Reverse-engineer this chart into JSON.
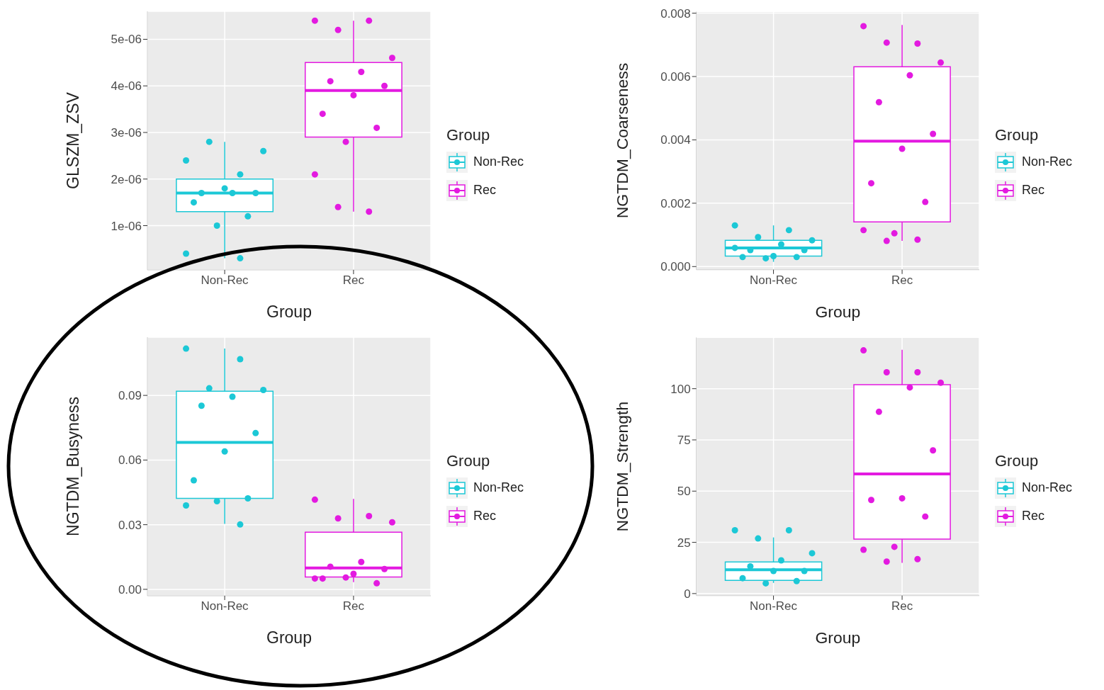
{
  "chart_data": [
    {
      "type": "box",
      "xlabel": "Group",
      "ylabel": "GLSZM_ZSV",
      "legend_title": "Group",
      "legend": "right",
      "grid": true,
      "marker": "circle",
      "categories": [
        "Non-Rec",
        "Rec"
      ],
      "colors": [
        "#1cc8d6",
        "#e31ae0"
      ],
      "ylim": [
        5e-08,
        5.6e-06
      ],
      "yticks": [
        {
          "value": 1e-06,
          "label": "1e-06"
        },
        {
          "value": 2e-06,
          "label": "2e-06"
        },
        {
          "value": 3e-06,
          "label": "3e-06"
        },
        {
          "value": 4e-06,
          "label": "4e-06"
        },
        {
          "value": 5e-06,
          "label": "5e-06"
        }
      ],
      "boxes": [
        {
          "low": 3e-07,
          "q1": 1.3e-06,
          "median": 1.7e-06,
          "q3": 2e-06,
          "high": 2.8e-06
        },
        {
          "low": 1.3e-06,
          "q1": 2.9e-06,
          "median": 3.9e-06,
          "q3": 4.5e-06,
          "high": 5.4e-06
        }
      ],
      "series": [
        {
          "type": "scatter",
          "name": "Non-Rec",
          "color": "#1cc8d6",
          "x": [
            "Non-Rec",
            "Non-Rec",
            "Non-Rec",
            "Non-Rec",
            "Non-Rec",
            "Non-Rec",
            "Non-Rec",
            "Non-Rec",
            "Non-Rec",
            "Non-Rec",
            "Non-Rec",
            "Non-Rec",
            "Non-Rec"
          ],
          "values": [
            2.4e-06,
            2.1e-06,
            2.8e-06,
            2.6e-06,
            1.7e-06,
            1.7e-06,
            1.7e-06,
            1.8e-06,
            1.5e-06,
            1.2e-06,
            1e-06,
            4e-07,
            3e-07
          ]
        },
        {
          "type": "scatter",
          "name": "Rec",
          "color": "#e31ae0",
          "x": [
            "Rec",
            "Rec",
            "Rec",
            "Rec",
            "Rec",
            "Rec",
            "Rec",
            "Rec",
            "Rec",
            "Rec",
            "Rec",
            "Rec",
            "Rec",
            "Rec"
          ],
          "values": [
            5.4e-06,
            5.4e-06,
            5.2e-06,
            4.6e-06,
            4.3e-06,
            4.1e-06,
            4e-06,
            3.8e-06,
            3.4e-06,
            3.1e-06,
            2.8e-06,
            2.1e-06,
            1.3e-06,
            1.4e-06
          ]
        }
      ]
    },
    {
      "type": "box",
      "xlabel": "Group",
      "ylabel": "NGTDM_Coarseness",
      "legend_title": "Group",
      "legend": "right",
      "grid": true,
      "marker": "circle",
      "categories": [
        "Non-Rec",
        "Rec"
      ],
      "colors": [
        "#1cc8d6",
        "#e31ae0"
      ],
      "ylim": [
        -0.0001,
        0.00805
      ],
      "yticks": [
        {
          "value": 0,
          "label": "0.000"
        },
        0.002,
        0.004,
        0.006,
        0.008
      ],
      "boxes": [
        {
          "low": 0.00015,
          "q1": 0.00033,
          "median": 0.00059,
          "q3": 0.00083,
          "high": 0.0013
        },
        {
          "low": 0.00081,
          "q1": 0.00141,
          "median": 0.00396,
          "q3": 0.00631,
          "high": 0.00763
        }
      ],
      "series": [
        {
          "type": "scatter",
          "name": "Non-Rec",
          "color": "#1cc8d6",
          "x": [
            "Non-Rec",
            "Non-Rec",
            "Non-Rec",
            "Non-Rec",
            "Non-Rec",
            "Non-Rec",
            "Non-Rec",
            "Non-Rec",
            "Non-Rec",
            "Non-Rec",
            "Non-Rec",
            "Non-Rec"
          ],
          "values": [
            0.0013,
            0.00115,
            0.00093,
            0.00083,
            0.0007,
            0.00052,
            0.00052,
            0.00033,
            0.0003,
            0.0003,
            0.00026,
            0.00059
          ]
        },
        {
          "type": "scatter",
          "name": "Rec",
          "color": "#e31ae0",
          "x": [
            "Rec",
            "Rec",
            "Rec",
            "Rec",
            "Rec",
            "Rec",
            "Rec",
            "Rec",
            "Rec",
            "Rec",
            "Rec",
            "Rec",
            "Rec",
            "Rec"
          ],
          "values": [
            0.00759,
            0.00704,
            0.00707,
            0.00644,
            0.00604,
            0.00519,
            0.00419,
            0.00372,
            0.00263,
            0.00204,
            0.00105,
            0.00115,
            0.00085,
            0.00081
          ]
        }
      ]
    },
    {
      "type": "box",
      "xlabel": "Group",
      "ylabel": "NGTDM_Busyness",
      "legend_title": "Group",
      "legend": "right",
      "grid": true,
      "marker": "circle",
      "categories": [
        "Non-Rec",
        "Rec"
      ],
      "colors": [
        "#1cc8d6",
        "#e31ae0"
      ],
      "ylim": [
        -0.003,
        0.117
      ],
      "yticks": [
        {
          "value": 0,
          "label": "0.00"
        },
        0.03,
        0.06,
        0.09
      ],
      "boxes": [
        {
          "low": 0.0304,
          "q1": 0.0422,
          "median": 0.0682,
          "q3": 0.0919,
          "high": 0.1117
        },
        {
          "low": 0.0033,
          "q1": 0.0057,
          "median": 0.0099,
          "q3": 0.0265,
          "high": 0.042
        }
      ],
      "series": [
        {
          "type": "scatter",
          "name": "Non-Rec",
          "color": "#1cc8d6",
          "x": [
            "Non-Rec",
            "Non-Rec",
            "Non-Rec",
            "Non-Rec",
            "Non-Rec",
            "Non-Rec",
            "Non-Rec",
            "Non-Rec",
            "Non-Rec",
            "Non-Rec",
            "Non-Rec",
            "Non-Rec",
            "Non-Rec"
          ],
          "values": [
            0.1117,
            0.1068,
            0.0933,
            0.0925,
            0.0894,
            0.0852,
            0.0725,
            0.064,
            0.0506,
            0.0422,
            0.0409,
            0.0389,
            0.0301
          ]
        },
        {
          "type": "scatter",
          "name": "Rec",
          "color": "#e31ae0",
          "x": [
            "Rec",
            "Rec",
            "Rec",
            "Rec",
            "Rec",
            "Rec",
            "Rec",
            "Rec",
            "Rec",
            "Rec",
            "Rec",
            "Rec"
          ],
          "values": [
            0.0416,
            0.034,
            0.0329,
            0.0311,
            0.0127,
            0.0105,
            0.0094,
            0.0072,
            0.005,
            0.0028,
            0.0055,
            0.005
          ]
        }
      ]
    },
    {
      "type": "box",
      "xlabel": "Group",
      "ylabel": "NGTDM_Strength",
      "legend_title": "Group",
      "legend": "right",
      "grid": true,
      "marker": "circle",
      "categories": [
        "Non-Rec",
        "Rec"
      ],
      "colors": [
        "#1cc8d6",
        "#e31ae0"
      ],
      "ylim": [
        -1,
        125
      ],
      "yticks": [
        0,
        25,
        50,
        75,
        100
      ],
      "boxes": [
        {
          "low": 5.2,
          "q1": 6.4,
          "median": 11.6,
          "q3": 15.4,
          "high": 27.4
        },
        {
          "low": 15,
          "q1": 26.6,
          "median": 58.4,
          "q3": 102,
          "high": 119
        }
      ],
      "series": [
        {
          "type": "scatter",
          "name": "Non-Rec",
          "color": "#1cc8d6",
          "x": [
            "Non-Rec",
            "Non-Rec",
            "Non-Rec",
            "Non-Rec",
            "Non-Rec",
            "Non-Rec",
            "Non-Rec",
            "Non-Rec",
            "Non-Rec",
            "Non-Rec",
            "Non-Rec"
          ],
          "values": [
            30.9,
            30.9,
            26.9,
            19.7,
            16.2,
            13.3,
            11,
            11,
            7.5,
            6.1,
            5
          ]
        },
        {
          "type": "scatter",
          "name": "Rec",
          "color": "#e31ae0",
          "x": [
            "Rec",
            "Rec",
            "Rec",
            "Rec",
            "Rec",
            "Rec",
            "Rec",
            "Rec",
            "Rec",
            "Rec",
            "Rec",
            "Rec",
            "Rec",
            "Rec"
          ],
          "values": [
            118.7,
            108,
            108,
            102.9,
            100.6,
            88.7,
            69.9,
            46.5,
            45.7,
            37.6,
            22.8,
            21.4,
            16.8,
            15.6
          ]
        }
      ]
    }
  ]
}
